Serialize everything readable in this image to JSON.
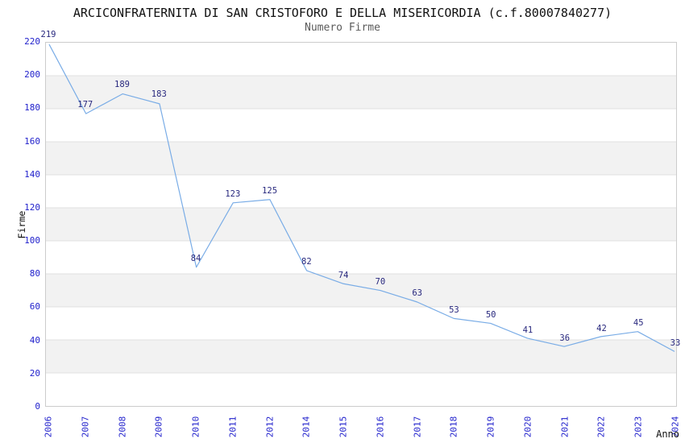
{
  "chart_data": {
    "type": "line",
    "title": "ARCICONFRATERNITA DI SAN CRISTOFORO E DELLA MISERICORDIA (c.f.80007840277)",
    "subtitle": "Numero Firme",
    "xlabel": "Anno",
    "ylabel": "Firme",
    "x": [
      "2006",
      "2007",
      "2008",
      "2009",
      "2010",
      "2011",
      "2012",
      "2014",
      "2015",
      "2016",
      "2017",
      "2018",
      "2019",
      "2020",
      "2021",
      "2022",
      "2023",
      "2024"
    ],
    "values": [
      219,
      177,
      189,
      183,
      84,
      123,
      125,
      82,
      74,
      70,
      63,
      53,
      50,
      41,
      36,
      42,
      45,
      33
    ],
    "ylim": [
      0,
      220
    ],
    "ytick_step": 20,
    "grid": "horizontal-only",
    "banded_background": true,
    "legend_position": "none",
    "colors": {
      "line": "#79ace6",
      "data_label": "#28287e",
      "tick_label": "#2222cc",
      "gridline": "#e0e0e0",
      "band": "#f2f2f2",
      "frame": "#cccccc",
      "title": "#111111",
      "subtitle": "#5a5a5a",
      "axis_title": "#111111"
    }
  }
}
